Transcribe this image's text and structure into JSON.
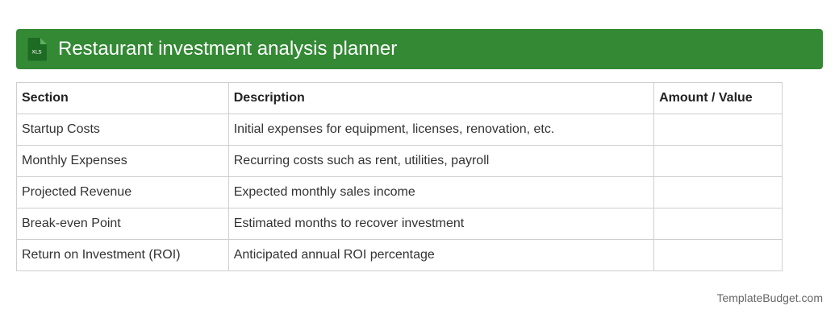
{
  "header": {
    "icon": "xls-file-icon",
    "icon_label": "XLS",
    "title": "Restaurant investment analysis planner",
    "color": "#348935"
  },
  "table": {
    "headers": [
      "Section",
      "Description",
      "Amount / Value"
    ],
    "rows": [
      {
        "section": "Startup Costs",
        "description": "Initial expenses for equipment, licenses, renovation, etc.",
        "amount": ""
      },
      {
        "section": "Monthly Expenses",
        "description": "Recurring costs such as rent, utilities, payroll",
        "amount": ""
      },
      {
        "section": "Projected Revenue",
        "description": "Expected monthly sales income",
        "amount": ""
      },
      {
        "section": "Break-even Point",
        "description": "Estimated months to recover investment",
        "amount": ""
      },
      {
        "section": "Return on Investment (ROI)",
        "description": "Anticipated annual ROI percentage",
        "amount": ""
      }
    ]
  },
  "footer": {
    "brand": "TemplateBudget.com"
  }
}
